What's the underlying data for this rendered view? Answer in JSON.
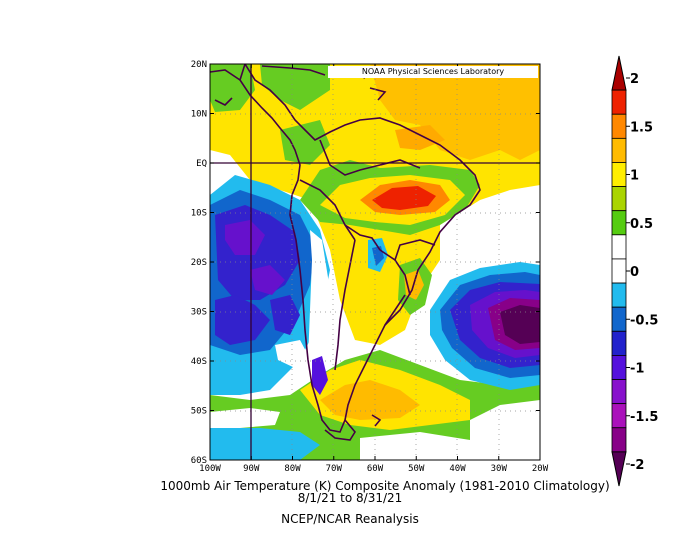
{
  "credit": "NOAA Physical Sciences Laboratory",
  "title": "1000mb Air Temperature (K) Composite Anomaly (1981-2010 Climatology)",
  "date_range": "8/1/21  to 8/31/21",
  "source": "NCEP/NCAR Reanalysis",
  "lat_labels": [
    "20N",
    "10N",
    "EQ",
    "10S",
    "20S",
    "30S",
    "40S",
    "50S",
    "60S"
  ],
  "lon_labels": [
    "100W",
    "90W",
    "80W",
    "70W",
    "60W",
    "50W",
    "40W",
    "30W",
    "20W"
  ],
  "colorbar": {
    "labels": [
      "2",
      "1.5",
      "1",
      "0.5",
      "0",
      "-0.5",
      "-1",
      "-1.5",
      "-2"
    ],
    "colors": [
      "#aa0000",
      "#ee2200",
      "#ff8800",
      "#ffbb00",
      "#ffee00",
      "#aad400",
      "#55cc11",
      "#ffffff",
      "#ffffff",
      "#22bbee",
      "#1166cc",
      "#2222cc",
      "#5511dd",
      "#8811cc",
      "#aa11bb",
      "#880088",
      "#550055"
    ]
  },
  "colors": {
    "ocean_white": "#ffffff",
    "yellow": "#ffe400",
    "orange": "#ffaa00",
    "red": "#ee2200",
    "green": "#66cc22",
    "cyan": "#22bbee",
    "blue": "#1166cc",
    "indigo": "#3322cc",
    "violet": "#6611cc",
    "purple": "#550055",
    "coast": "#440044"
  }
}
